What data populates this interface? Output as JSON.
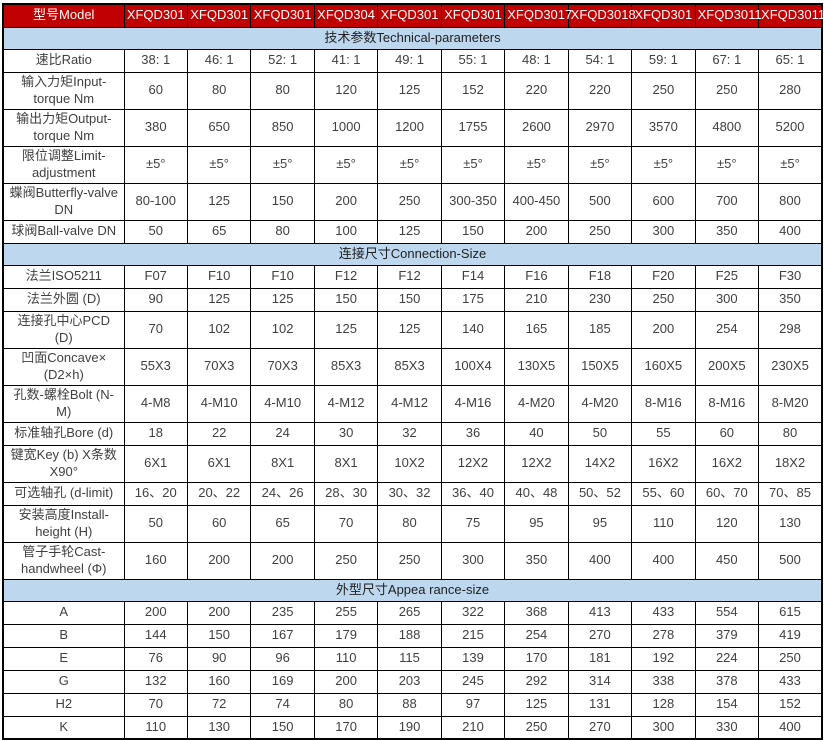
{
  "colors": {
    "header_bg": "#c00000",
    "header_text": "#ffffff",
    "section_bg": "#bdd7ee",
    "section_text": "#1f1f1f",
    "body_text": "#3f3f3f",
    "border": "#000000"
  },
  "table": {
    "model_header": {
      "label": "型号Model",
      "models": [
        "XFQD301",
        "XFQD301",
        "XFQD301",
        "XFQD304",
        "XFQD301",
        "XFQD301",
        "XFQD3017",
        "XFQD3018",
        "XFQD301",
        "XFQD3011",
        "XFQD3011"
      ]
    },
    "sections": [
      {
        "title": "技术参数Technical-parameters",
        "rows": [
          {
            "label": [
              "速比Ratio"
            ],
            "values": [
              "38: 1",
              "46: 1",
              "52: 1",
              "41: 1",
              "49: 1",
              "55: 1",
              "48: 1",
              "54: 1",
              "59: 1",
              "67: 1",
              "65: 1"
            ]
          },
          {
            "label": [
              "输入力矩Input-",
              "torque Nm"
            ],
            "values": [
              "60",
              "80",
              "80",
              "120",
              "125",
              "152",
              "220",
              "220",
              "250",
              "250",
              "280"
            ]
          },
          {
            "label": [
              "输出力矩Output-",
              "torque Nm"
            ],
            "values": [
              "380",
              "650",
              "850",
              "1000",
              "1200",
              "1755",
              "2600",
              "2970",
              "3570",
              "4800",
              "5200"
            ]
          },
          {
            "label": [
              "限位调整Limit-",
              "adjustment"
            ],
            "values": [
              "±5°",
              "±5°",
              "±5°",
              "±5°",
              "±5°",
              "±5°",
              "±5°",
              "±5°",
              "±5°",
              "±5°",
              "±5°"
            ]
          },
          {
            "label": [
              "蝶阀Butterfly-valve",
              "DN"
            ],
            "values": [
              "80-100",
              "125",
              "150",
              "200",
              "250",
              "300-350",
              "400-450",
              "500",
              "600",
              "700",
              "800"
            ]
          },
          {
            "label": [
              "球阀Ball-valve DN"
            ],
            "values": [
              "50",
              "65",
              "80",
              "100",
              "125",
              "150",
              "200",
              "250",
              "300",
              "350",
              "400"
            ]
          }
        ]
      },
      {
        "title": "连接尺寸Connection-Size",
        "rows": [
          {
            "label": [
              "法兰ISO5211"
            ],
            "values": [
              "F07",
              "F10",
              "F10",
              "F12",
              "F12",
              "F14",
              "F16",
              "F18",
              "F20",
              "F25",
              "F30"
            ]
          },
          {
            "label": [
              "法兰外圆 (D)"
            ],
            "values": [
              "90",
              "125",
              "125",
              "150",
              "150",
              "175",
              "210",
              "230",
              "250",
              "300",
              "350"
            ]
          },
          {
            "label": [
              "连接孔中心PCD",
              "(D)"
            ],
            "values": [
              "70",
              "102",
              "102",
              "125",
              "125",
              "140",
              "165",
              "185",
              "200",
              "254",
              "298"
            ]
          },
          {
            "label": [
              "凹面Concave×",
              "(D2×h)"
            ],
            "values": [
              "55X3",
              "70X3",
              "70X3",
              "85X3",
              "85X3",
              "100X4",
              "130X5",
              "150X5",
              "160X5",
              "200X5",
              "230X5"
            ]
          },
          {
            "label": [
              "孔数-螺栓Bolt (N-",
              "M)"
            ],
            "values": [
              "4-M8",
              "4-M10",
              "4-M10",
              "4-M12",
              "4-M12",
              "4-M16",
              "4-M20",
              "4-M20",
              "8-M16",
              "8-M16",
              "8-M20"
            ]
          },
          {
            "label": [
              "标准轴孔Bore (d)"
            ],
            "values": [
              "18",
              "22",
              "24",
              "30",
              "32",
              "36",
              "40",
              "50",
              "55",
              "60",
              "80"
            ]
          },
          {
            "label": [
              "键宽Key (b) X条数",
              "X90°"
            ],
            "values": [
              "6X1",
              "6X1",
              "8X1",
              "8X1",
              "10X2",
              "12X2",
              "12X2",
              "14X2",
              "16X2",
              "16X2",
              "18X2"
            ]
          },
          {
            "label": [
              "可选轴孔 (d-limit)"
            ],
            "values": [
              "16、20",
              "20、22",
              "24、26",
              "28、30",
              "30、32",
              "36、40",
              "40、48",
              "50、52",
              "55、60",
              "60、70",
              "70、85"
            ]
          },
          {
            "label": [
              "安装高度Install-",
              "height (H)"
            ],
            "values": [
              "50",
              "60",
              "65",
              "70",
              "80",
              "75",
              "95",
              "95",
              "110",
              "120",
              "130"
            ]
          },
          {
            "label": [
              "管子手轮Cast-",
              "handwheel (Φ)"
            ],
            "values": [
              "160",
              "200",
              "200",
              "250",
              "250",
              "300",
              "350",
              "400",
              "400",
              "450",
              "500"
            ]
          }
        ]
      },
      {
        "title": "外型尺寸Appea rance-size",
        "rows": [
          {
            "label": [
              "A"
            ],
            "values": [
              "200",
              "200",
              "235",
              "255",
              "265",
              "322",
              "368",
              "413",
              "433",
              "554",
              "615"
            ]
          },
          {
            "label": [
              "B"
            ],
            "values": [
              "144",
              "150",
              "167",
              "179",
              "188",
              "215",
              "254",
              "270",
              "278",
              "379",
              "419"
            ]
          },
          {
            "label": [
              "E"
            ],
            "values": [
              "76",
              "90",
              "96",
              "110",
              "115",
              "139",
              "170",
              "181",
              "192",
              "224",
              "250"
            ]
          },
          {
            "label": [
              "G"
            ],
            "values": [
              "132",
              "160",
              "169",
              "200",
              "203",
              "245",
              "292",
              "314",
              "338",
              "378",
              "433"
            ]
          },
          {
            "label": [
              "H2"
            ],
            "values": [
              "70",
              "72",
              "74",
              "80",
              "88",
              "97",
              "125",
              "131",
              "128",
              "154",
              "152"
            ]
          },
          {
            "label": [
              "K"
            ],
            "values": [
              "110",
              "130",
              "150",
              "170",
              "190",
              "210",
              "250",
              "270",
              "300",
              "330",
              "400"
            ]
          }
        ]
      }
    ]
  }
}
